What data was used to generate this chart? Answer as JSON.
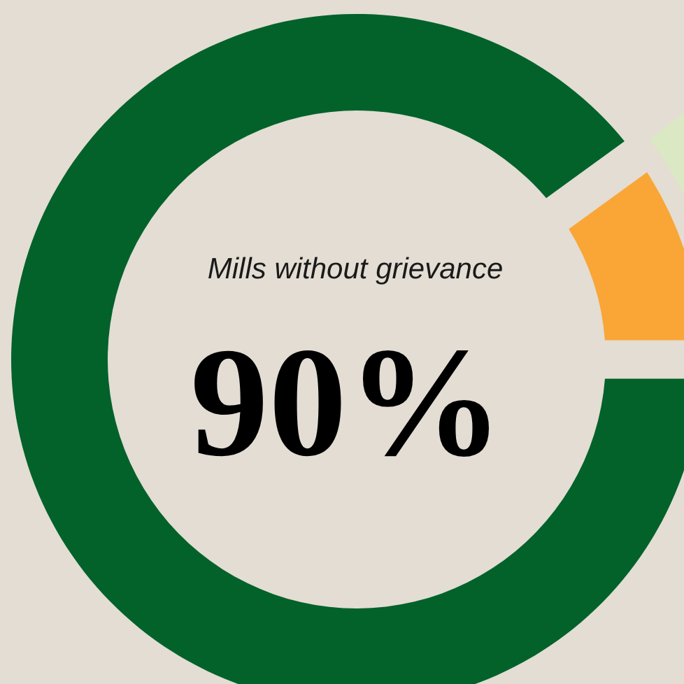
{
  "chart_data": {
    "type": "donut",
    "title": "Mills without grievance",
    "categories": [
      null,
      null
    ],
    "values": [
      90,
      10
    ],
    "colors": [
      "#02622a",
      "#f9a637"
    ],
    "value_labels": [
      "90%",
      null
    ]
  }
}
